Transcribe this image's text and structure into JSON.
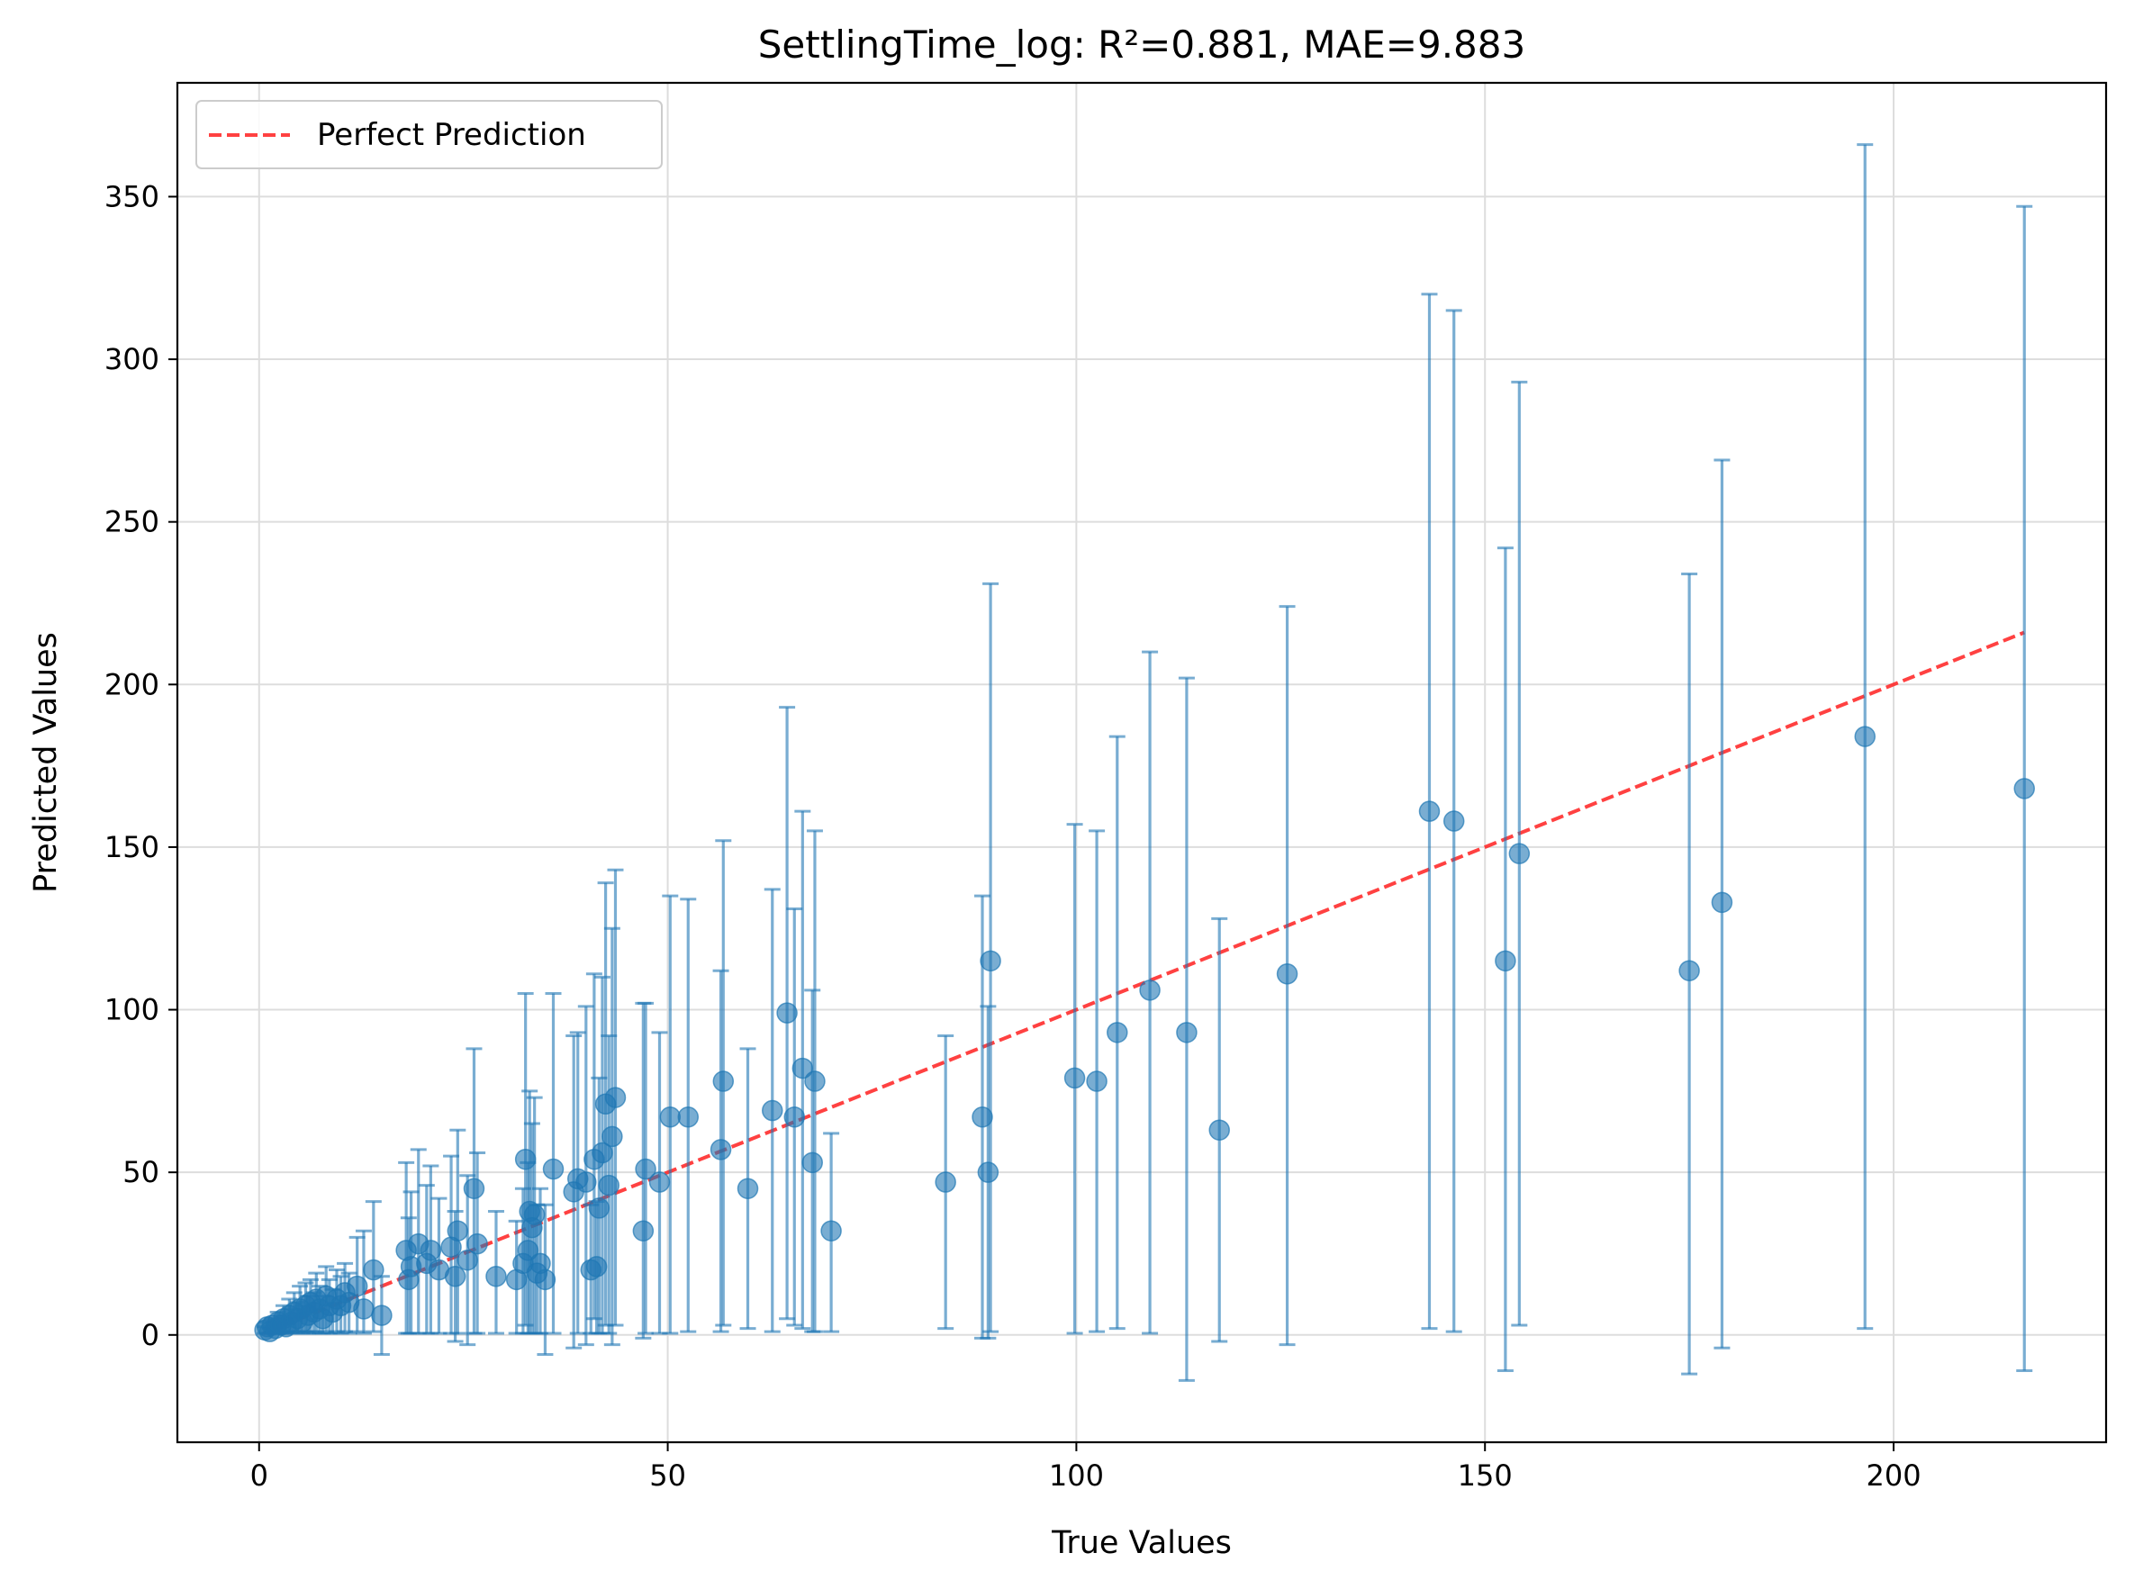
{
  "chart_data": {
    "type": "scatter",
    "title": "SettlingTime_log: R²=0.881, MAE=9.883",
    "xlabel": "True Values",
    "ylabel": "Predicted Values",
    "xlim": [
      -10,
      226
    ],
    "ylim": [
      -33,
      385
    ],
    "xticks": [
      0,
      50,
      100,
      150,
      200
    ],
    "yticks": [
      0,
      50,
      100,
      150,
      200,
      250,
      300,
      350
    ],
    "grid": true,
    "legend": {
      "placement": "top-left",
      "entries": [
        "Perfect Prediction"
      ]
    },
    "colors": {
      "points": "#1f77b4",
      "reference_line": "#ff2020",
      "grid": "#dddddd"
    },
    "reference_line": {
      "name": "Perfect Prediction",
      "x": [
        0.5,
        216
      ],
      "y": [
        0.5,
        216
      ]
    },
    "series": [
      {
        "points": [
          {
            "x": 0.7,
            "y": 1.5,
            "lo": 0.5,
            "hi": 2.5
          },
          {
            "x": 1,
            "y": 2.5,
            "lo": 0.5,
            "hi": 4
          },
          {
            "x": 1.3,
            "y": 1,
            "lo": 0.5,
            "hi": 2
          },
          {
            "x": 1.6,
            "y": 3,
            "lo": 0.8,
            "hi": 5
          },
          {
            "x": 2,
            "y": 2,
            "lo": 0.5,
            "hi": 4
          },
          {
            "x": 2.3,
            "y": 4,
            "lo": 1,
            "hi": 7
          },
          {
            "x": 2.7,
            "y": 3,
            "lo": 0.5,
            "hi": 6
          },
          {
            "x": 3,
            "y": 5,
            "lo": 1,
            "hi": 9
          },
          {
            "x": 3.3,
            "y": 2.5,
            "lo": 0.5,
            "hi": 5
          },
          {
            "x": 3.7,
            "y": 6,
            "lo": 1,
            "hi": 11
          },
          {
            "x": 4,
            "y": 4,
            "lo": 0.5,
            "hi": 8
          },
          {
            "x": 4.3,
            "y": 7,
            "lo": 1,
            "hi": 13
          },
          {
            "x": 4.7,
            "y": 5,
            "lo": 0.5,
            "hi": 10
          },
          {
            "x": 5,
            "y": 8,
            "lo": 1,
            "hi": 15
          },
          {
            "x": 5.3,
            "y": 4,
            "lo": 0.5,
            "hi": 9
          },
          {
            "x": 5.7,
            "y": 9,
            "lo": 1,
            "hi": 16
          },
          {
            "x": 6,
            "y": 6,
            "lo": 0.5,
            "hi": 12
          },
          {
            "x": 6.3,
            "y": 10,
            "lo": 1,
            "hi": 17
          },
          {
            "x": 6.7,
            "y": 7,
            "lo": 0.5,
            "hi": 13
          },
          {
            "x": 7,
            "y": 11,
            "lo": 1,
            "hi": 19
          },
          {
            "x": 7.4,
            "y": 8,
            "lo": 0.5,
            "hi": 15
          },
          {
            "x": 7.8,
            "y": 5,
            "lo": 0.5,
            "hi": 12
          },
          {
            "x": 8.2,
            "y": 12,
            "lo": 1,
            "hi": 21
          },
          {
            "x": 8.6,
            "y": 9,
            "lo": 0.5,
            "hi": 17
          },
          {
            "x": 9,
            "y": 7,
            "lo": 0.5,
            "hi": 14
          },
          {
            "x": 9.5,
            "y": 11,
            "lo": 1,
            "hi": 20
          },
          {
            "x": 10,
            "y": 9,
            "lo": 0.5,
            "hi": 18
          },
          {
            "x": 10.5,
            "y": 13,
            "lo": 1,
            "hi": 22
          },
          {
            "x": 11,
            "y": 10,
            "lo": 0.5,
            "hi": 19
          },
          {
            "x": 12,
            "y": 15,
            "lo": 1,
            "hi": 30
          },
          {
            "x": 12.8,
            "y": 8,
            "lo": 0.5,
            "hi": 32
          },
          {
            "x": 14,
            "y": 20,
            "lo": 1,
            "hi": 41
          },
          {
            "x": 15,
            "y": 6,
            "lo": -6,
            "hi": 18
          },
          {
            "x": 18,
            "y": 26,
            "lo": 0.5,
            "hi": 53
          },
          {
            "x": 18.3,
            "y": 17,
            "lo": 0.5,
            "hi": 36
          },
          {
            "x": 18.6,
            "y": 21,
            "lo": 0.5,
            "hi": 44
          },
          {
            "x": 19.5,
            "y": 28,
            "lo": 0.5,
            "hi": 57
          },
          {
            "x": 20.5,
            "y": 22,
            "lo": 0.5,
            "hi": 46
          },
          {
            "x": 21,
            "y": 26,
            "lo": 0.5,
            "hi": 52
          },
          {
            "x": 22,
            "y": 20,
            "lo": 0.5,
            "hi": 42
          },
          {
            "x": 23.5,
            "y": 27,
            "lo": 0.5,
            "hi": 55
          },
          {
            "x": 24,
            "y": 18,
            "lo": -2,
            "hi": 38
          },
          {
            "x": 24.3,
            "y": 32,
            "lo": 0.5,
            "hi": 63
          },
          {
            "x": 25.5,
            "y": 23,
            "lo": -3,
            "hi": 49
          },
          {
            "x": 26.3,
            "y": 45,
            "lo": 0.5,
            "hi": 88
          },
          {
            "x": 26.7,
            "y": 28,
            "lo": 0.5,
            "hi": 56
          },
          {
            "x": 29,
            "y": 18,
            "lo": 0.5,
            "hi": 38
          },
          {
            "x": 31.5,
            "y": 17,
            "lo": 0.5,
            "hi": 35
          },
          {
            "x": 32.3,
            "y": 22,
            "lo": 0.5,
            "hi": 45
          },
          {
            "x": 32.6,
            "y": 54,
            "lo": 3,
            "hi": 105
          },
          {
            "x": 32.9,
            "y": 26,
            "lo": 0.5,
            "hi": 53
          },
          {
            "x": 33.1,
            "y": 38,
            "lo": 0.5,
            "hi": 75
          },
          {
            "x": 33.4,
            "y": 33,
            "lo": 0.5,
            "hi": 65
          },
          {
            "x": 33.7,
            "y": 37,
            "lo": 0.5,
            "hi": 73
          },
          {
            "x": 34,
            "y": 19,
            "lo": 0.5,
            "hi": 40
          },
          {
            "x": 34.4,
            "y": 22,
            "lo": 0.5,
            "hi": 45
          },
          {
            "x": 35,
            "y": 17,
            "lo": -6,
            "hi": 40
          },
          {
            "x": 36,
            "y": 51,
            "lo": 0.5,
            "hi": 105
          },
          {
            "x": 38.5,
            "y": 44,
            "lo": -4,
            "hi": 92
          },
          {
            "x": 39,
            "y": 48,
            "lo": 0.5,
            "hi": 93
          },
          {
            "x": 40,
            "y": 47,
            "lo": -3,
            "hi": 101
          },
          {
            "x": 40.6,
            "y": 20,
            "lo": 0.5,
            "hi": 40
          },
          {
            "x": 41,
            "y": 54,
            "lo": 5,
            "hi": 111
          },
          {
            "x": 41.3,
            "y": 21,
            "lo": 0.5,
            "hi": 41
          },
          {
            "x": 41.6,
            "y": 39,
            "lo": 0.5,
            "hi": 79
          },
          {
            "x": 42,
            "y": 56,
            "lo": 0.5,
            "hi": 110
          },
          {
            "x": 42.4,
            "y": 71,
            "lo": 3,
            "hi": 139
          },
          {
            "x": 42.8,
            "y": 46,
            "lo": 0.5,
            "hi": 92
          },
          {
            "x": 43.2,
            "y": 61,
            "lo": -3,
            "hi": 125
          },
          {
            "x": 43.6,
            "y": 73,
            "lo": 3,
            "hi": 143
          },
          {
            "x": 47,
            "y": 32,
            "lo": -1,
            "hi": 102
          },
          {
            "x": 47.3,
            "y": 51,
            "lo": 0.5,
            "hi": 102
          },
          {
            "x": 49,
            "y": 47,
            "lo": 0.5,
            "hi": 93
          },
          {
            "x": 50.3,
            "y": 67,
            "lo": 0.5,
            "hi": 135
          },
          {
            "x": 52.5,
            "y": 67,
            "lo": 1,
            "hi": 134
          },
          {
            "x": 56.5,
            "y": 57,
            "lo": 1,
            "hi": 112
          },
          {
            "x": 56.8,
            "y": 78,
            "lo": 3,
            "hi": 152
          },
          {
            "x": 59.8,
            "y": 45,
            "lo": 2,
            "hi": 88
          },
          {
            "x": 62.8,
            "y": 69,
            "lo": 1,
            "hi": 137
          },
          {
            "x": 64.6,
            "y": 99,
            "lo": 5,
            "hi": 193
          },
          {
            "x": 65.5,
            "y": 67,
            "lo": 3,
            "hi": 131
          },
          {
            "x": 66.5,
            "y": 82,
            "lo": 2,
            "hi": 161
          },
          {
            "x": 67.7,
            "y": 53,
            "lo": 1,
            "hi": 106
          },
          {
            "x": 68,
            "y": 78,
            "lo": 1,
            "hi": 155
          },
          {
            "x": 70,
            "y": 32,
            "lo": 1,
            "hi": 62
          },
          {
            "x": 84,
            "y": 47,
            "lo": 2,
            "hi": 92
          },
          {
            "x": 88.5,
            "y": 67,
            "lo": -1,
            "hi": 135
          },
          {
            "x": 89.2,
            "y": 50,
            "lo": -1,
            "hi": 101
          },
          {
            "x": 89.5,
            "y": 115,
            "lo": 1,
            "hi": 231
          },
          {
            "x": 99.8,
            "y": 79,
            "lo": 0.5,
            "hi": 157
          },
          {
            "x": 102.5,
            "y": 78,
            "lo": 1,
            "hi": 155
          },
          {
            "x": 105,
            "y": 93,
            "lo": 2,
            "hi": 184
          },
          {
            "x": 109,
            "y": 106,
            "lo": 0.5,
            "hi": 210
          },
          {
            "x": 113.5,
            "y": 93,
            "lo": -14,
            "hi": 202
          },
          {
            "x": 117.5,
            "y": 63,
            "lo": -2,
            "hi": 128
          },
          {
            "x": 125.8,
            "y": 111,
            "lo": -3,
            "hi": 224
          },
          {
            "x": 143.2,
            "y": 161,
            "lo": 2,
            "hi": 320
          },
          {
            "x": 146.2,
            "y": 158,
            "lo": 1,
            "hi": 315
          },
          {
            "x": 152.5,
            "y": 115,
            "lo": -11,
            "hi": 242
          },
          {
            "x": 154.2,
            "y": 148,
            "lo": 3,
            "hi": 293
          },
          {
            "x": 175,
            "y": 112,
            "lo": -12,
            "hi": 234
          },
          {
            "x": 179,
            "y": 133,
            "lo": -4,
            "hi": 269
          },
          {
            "x": 196.5,
            "y": 184,
            "lo": 2,
            "hi": 366
          },
          {
            "x": 216,
            "y": 168,
            "lo": -11,
            "hi": 347
          }
        ]
      }
    ]
  }
}
